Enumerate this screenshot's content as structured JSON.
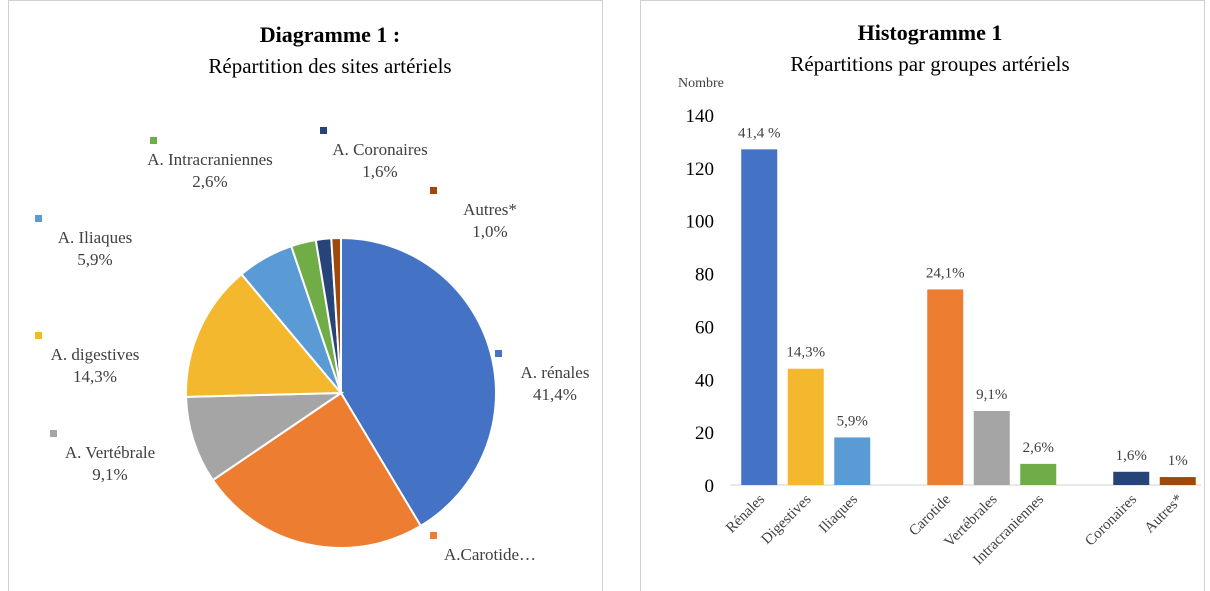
{
  "chart_data": [
    {
      "type": "pie",
      "title": "Diagramme 1 :",
      "subtitle": "Répartition des sites artériels",
      "categories": [
        "A. rénales",
        "A.Carotide…",
        "A. Vertébrale",
        "A. digestives",
        "A. Iliaques",
        "A. Intracraniennes",
        "A. Coronaires",
        "Autres*"
      ],
      "values": [
        41.4,
        24.1,
        9.1,
        14.3,
        5.9,
        2.6,
        1.6,
        1.0
      ],
      "value_labels": [
        "41,4%",
        null,
        "9,1%",
        "14,3%",
        "5,9%",
        "2,6%",
        "1,6%",
        "1,0%"
      ],
      "colors": [
        "#4472c4",
        "#ed7d31",
        "#a5a5a5",
        "#f4b82e",
        "#5b9bd5",
        "#70ad47",
        "#264478",
        "#9e480e"
      ]
    },
    {
      "type": "bar",
      "title": "Histogramme 1",
      "subtitle": "Répartitions par groupes artériels",
      "ylabel": "Nombre",
      "categories": [
        "Rénales",
        "Digestives",
        "Iliaques",
        null,
        "Carotide",
        "Vertébrales",
        "Intracraniennes",
        null,
        "Coronaires",
        "Autres*"
      ],
      "values": [
        127,
        44,
        18,
        null,
        74,
        28,
        8,
        null,
        5,
        3
      ],
      "value_labels": [
        "41,4 %",
        "14,3%",
        "5,9%",
        null,
        "24,1%",
        "9,1%",
        "2,6%",
        null,
        "1,6%",
        "1%"
      ],
      "colors": [
        "#4472c4",
        "#f4b82e",
        "#5b9bd5",
        null,
        "#ed7d31",
        "#a5a5a5",
        "#70ad47",
        null,
        "#264478",
        "#9e480e"
      ],
      "ylim": [
        0,
        140
      ],
      "yticks": [
        0,
        20,
        40,
        60,
        80,
        100,
        120,
        140
      ],
      "grid": false
    }
  ]
}
